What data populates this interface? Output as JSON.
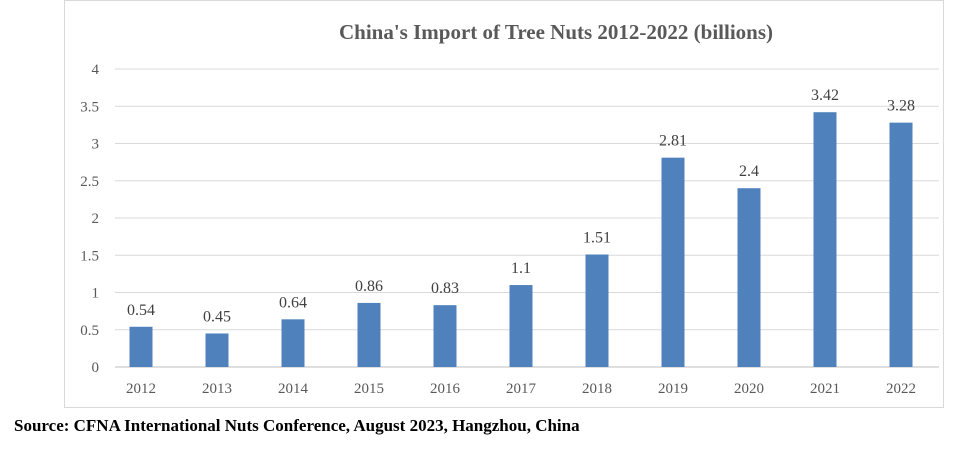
{
  "chart_data": {
    "type": "bar",
    "title": "China's Import of Tree Nuts 2012-2022 (billions)",
    "xlabel": "",
    "ylabel": "",
    "categories": [
      "2012",
      "2013",
      "2014",
      "2015",
      "2016",
      "2017",
      "2018",
      "2019",
      "2020",
      "2021",
      "2022"
    ],
    "values": [
      0.54,
      0.45,
      0.64,
      0.86,
      0.83,
      1.1,
      1.51,
      2.81,
      2.4,
      3.42,
      3.28
    ],
    "value_labels": [
      "0.54",
      "0.45",
      "0.64",
      "0.86",
      "0.83",
      "1.1",
      "1.51",
      "2.81",
      "2.4",
      "3.42",
      "3.28"
    ],
    "ylim": [
      0,
      4
    ],
    "yticks": [
      "0",
      "0.5",
      "1",
      "1.5",
      "2",
      "2.5",
      "3",
      "3.5",
      "4"
    ],
    "grid": true,
    "legend": "none",
    "bar_color": "#4f81bd"
  },
  "source_note": "Source: CFNA International Nuts Conference, August 2023, Hangzhou, China"
}
